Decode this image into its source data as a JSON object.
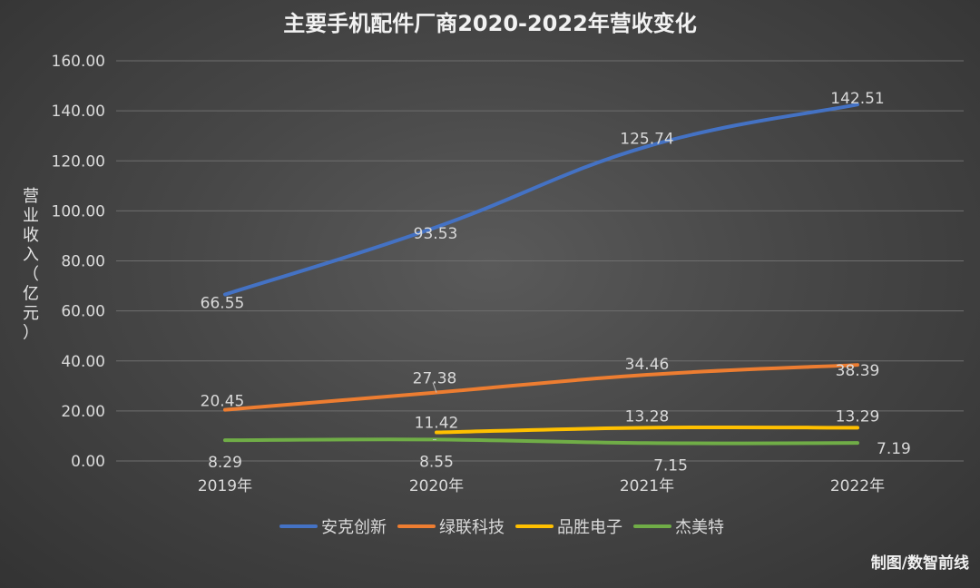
{
  "chart_data": {
    "type": "line",
    "title": "主要手机配件厂商2020-2022年营收变化",
    "ylabel": "营业收入（亿元）",
    "xlabel": "",
    "categories": [
      "2019年",
      "2020年",
      "2021年",
      "2022年"
    ],
    "ylim": [
      0,
      160
    ],
    "yticks": [
      "0.00",
      "20.00",
      "40.00",
      "60.00",
      "80.00",
      "100.00",
      "120.00",
      "140.00",
      "160.00"
    ],
    "grid": true,
    "legend_position": "bottom",
    "series": [
      {
        "name": "安克创新",
        "color": "#4472c4",
        "values": [
          66.55,
          93.53,
          125.74,
          142.51
        ],
        "labels": [
          "66.55",
          "93.53",
          "125.74",
          "142.51"
        ]
      },
      {
        "name": "绿联科技",
        "color": "#ed7d31",
        "values": [
          20.45,
          27.38,
          34.46,
          38.39
        ],
        "labels": [
          "20.45",
          "27.38",
          "34.46",
          "38.39"
        ]
      },
      {
        "name": "品胜电子",
        "color": "#ffc000",
        "values": [
          null,
          11.42,
          13.28,
          13.29
        ],
        "labels": [
          null,
          "11.42",
          "13.28",
          "13.29"
        ]
      },
      {
        "name": "杰美特",
        "color": "#70ad47",
        "values": [
          8.29,
          8.55,
          7.15,
          7.19
        ],
        "labels": [
          "8.29",
          "8.55",
          "7.15",
          "7.19"
        ]
      }
    ],
    "credit": "制图/数智前线"
  }
}
